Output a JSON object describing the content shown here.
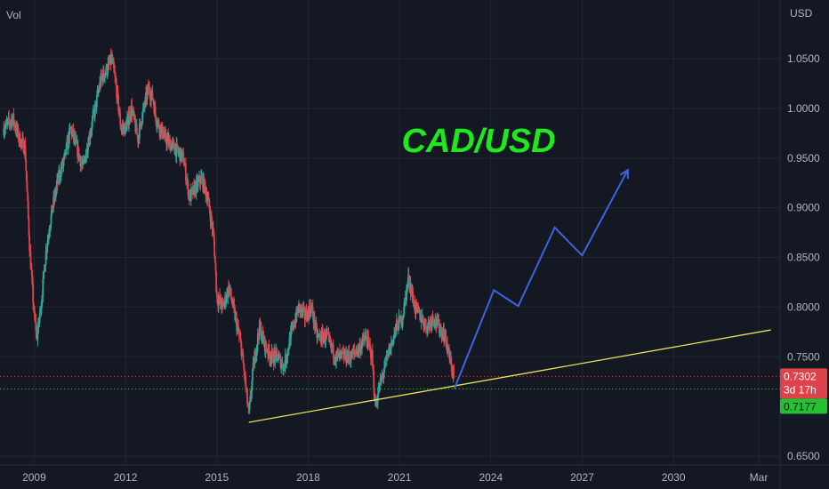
{
  "chart_data": {
    "type": "line",
    "title": "CAD/USD",
    "volume_label": "Vol",
    "currency_label": "USD",
    "x_labels": [
      "2009",
      "2012",
      "2015",
      "2018",
      "2021",
      "2024",
      "2027",
      "2030",
      "Mar"
    ],
    "y_ticks": [
      1.05,
      1.0,
      0.95,
      0.9,
      0.85,
      0.8,
      0.75,
      0.65
    ],
    "y_tick_labels": [
      "1.0500",
      "1.0000",
      "0.9500",
      "0.9000",
      "0.8500",
      "0.8000",
      "0.7500",
      "0.6500"
    ],
    "ylim": [
      0.633,
      1.086
    ],
    "xlim": [
      2008.2,
      2033.2
    ],
    "grid": true,
    "price_series": {
      "name": "CAD/USD",
      "points": [
        [
          2008.0,
          0.98
        ],
        [
          2008.3,
          0.99
        ],
        [
          2008.5,
          0.97
        ],
        [
          2008.7,
          0.96
        ],
        [
          2008.85,
          0.86
        ],
        [
          2009.0,
          0.79
        ],
        [
          2009.1,
          0.77
        ],
        [
          2009.25,
          0.81
        ],
        [
          2009.4,
          0.86
        ],
        [
          2009.6,
          0.9
        ],
        [
          2009.8,
          0.93
        ],
        [
          2010.0,
          0.95
        ],
        [
          2010.2,
          0.98
        ],
        [
          2010.4,
          0.96
        ],
        [
          2010.6,
          0.94
        ],
        [
          2010.8,
          0.97
        ],
        [
          2011.0,
          1.0
        ],
        [
          2011.2,
          1.03
        ],
        [
          2011.4,
          1.04
        ],
        [
          2011.55,
          1.05
        ],
        [
          2011.7,
          1.02
        ],
        [
          2011.85,
          0.98
        ],
        [
          2012.0,
          0.98
        ],
        [
          2012.2,
          1.0
        ],
        [
          2012.4,
          0.97
        ],
        [
          2012.6,
          1.0
        ],
        [
          2012.75,
          1.02
        ],
        [
          2012.9,
          1.01
        ],
        [
          2013.0,
          0.99
        ],
        [
          2013.3,
          0.97
        ],
        [
          2013.6,
          0.96
        ],
        [
          2013.9,
          0.95
        ],
        [
          2014.1,
          0.91
        ],
        [
          2014.3,
          0.92
        ],
        [
          2014.5,
          0.93
        ],
        [
          2014.7,
          0.91
        ],
        [
          2014.9,
          0.87
        ],
        [
          2015.0,
          0.81
        ],
        [
          2015.2,
          0.8
        ],
        [
          2015.4,
          0.82
        ],
        [
          2015.6,
          0.79
        ],
        [
          2015.8,
          0.76
        ],
        [
          2015.95,
          0.72
        ],
        [
          2016.05,
          0.69
        ],
        [
          2016.2,
          0.74
        ],
        [
          2016.4,
          0.78
        ],
        [
          2016.6,
          0.76
        ],
        [
          2016.8,
          0.75
        ],
        [
          2017.0,
          0.75
        ],
        [
          2017.2,
          0.74
        ],
        [
          2017.5,
          0.78
        ],
        [
          2017.7,
          0.8
        ],
        [
          2017.9,
          0.79
        ],
        [
          2018.1,
          0.8
        ],
        [
          2018.3,
          0.77
        ],
        [
          2018.6,
          0.77
        ],
        [
          2018.9,
          0.75
        ],
        [
          2019.1,
          0.75
        ],
        [
          2019.4,
          0.75
        ],
        [
          2019.7,
          0.76
        ],
        [
          2019.9,
          0.77
        ],
        [
          2020.1,
          0.75
        ],
        [
          2020.2,
          0.7
        ],
        [
          2020.35,
          0.72
        ],
        [
          2020.6,
          0.75
        ],
        [
          2020.9,
          0.78
        ],
        [
          2021.1,
          0.79
        ],
        [
          2021.3,
          0.83
        ],
        [
          2021.5,
          0.8
        ],
        [
          2021.7,
          0.79
        ],
        [
          2021.9,
          0.78
        ],
        [
          2022.1,
          0.79
        ],
        [
          2022.3,
          0.78
        ],
        [
          2022.5,
          0.77
        ],
        [
          2022.7,
          0.74
        ],
        [
          2022.8,
          0.73
        ]
      ]
    },
    "projection_series": {
      "points": [
        [
          2022.8,
          0.7177
        ],
        [
          2024.1,
          0.817
        ],
        [
          2024.9,
          0.801
        ],
        [
          2026.1,
          0.88
        ],
        [
          2027.0,
          0.852
        ],
        [
          2028.5,
          0.938
        ]
      ]
    },
    "trendline": {
      "points": [
        [
          2016.05,
          0.684
        ],
        [
          2033.2,
          0.777
        ]
      ]
    },
    "price_line": {
      "value": 0.7302,
      "label": "0.7302",
      "countdown": "3d 17h"
    },
    "support_line": {
      "value": 0.7177,
      "label": "0.7177"
    }
  },
  "colors": {
    "background": "#141823",
    "grid": "#222633",
    "axis_text": "#b2b5be",
    "candle_up": "#2ea89a",
    "candle_down": "#e0424b",
    "projection": "#3d63e0",
    "trendline": "#e6e05a",
    "price_line": "#e0424b",
    "support_line": "#22c233",
    "title": "#1fe81f"
  }
}
